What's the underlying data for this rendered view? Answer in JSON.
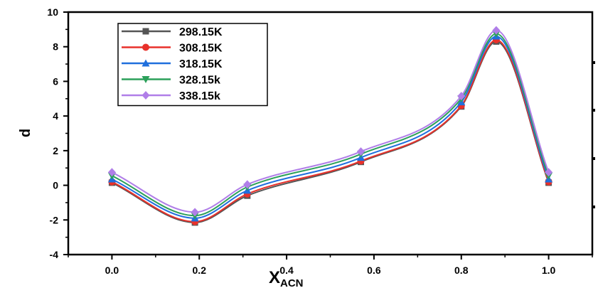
{
  "chart_data": {
    "type": "line",
    "xlabel": "X",
    "xlabel_sub": "ACN",
    "ylabel": "d",
    "xlim": [
      -0.1,
      1.1
    ],
    "ylim": [
      -4,
      10
    ],
    "x_ticks": [
      "0.0",
      "0.2",
      "0.4",
      "0.6",
      "0.8",
      "1.0"
    ],
    "y_ticks": [
      "-4",
      "-2",
      "0",
      "2",
      "4",
      "6",
      "8",
      "10"
    ],
    "x": [
      0.0,
      0.19,
      0.31,
      0.57,
      0.8,
      0.88,
      1.0
    ],
    "legend_position": "top-left",
    "series": [
      {
        "name": "298.15K",
        "color": "#555555",
        "marker": "square",
        "values": [
          0.15,
          -2.15,
          -0.6,
          1.35,
          4.55,
          8.3,
          0.15
        ]
      },
      {
        "name": "308.15K",
        "color": "#e8312b",
        "marker": "circle",
        "values": [
          0.2,
          -2.1,
          -0.5,
          1.4,
          4.6,
          8.4,
          0.2
        ]
      },
      {
        "name": "318.15K",
        "color": "#1f6fdd",
        "marker": "triangle-up",
        "values": [
          0.35,
          -1.9,
          -0.3,
          1.6,
          4.8,
          8.6,
          0.35
        ]
      },
      {
        "name": "328.15k",
        "color": "#2ca05a",
        "marker": "triangle-down",
        "values": [
          0.55,
          -1.75,
          -0.1,
          1.8,
          5.0,
          8.75,
          0.55
        ]
      },
      {
        "name": "338.15k",
        "color": "#b07ee8",
        "marker": "diamond",
        "values": [
          0.75,
          -1.55,
          0.05,
          1.95,
          5.15,
          8.95,
          0.75
        ]
      }
    ]
  }
}
